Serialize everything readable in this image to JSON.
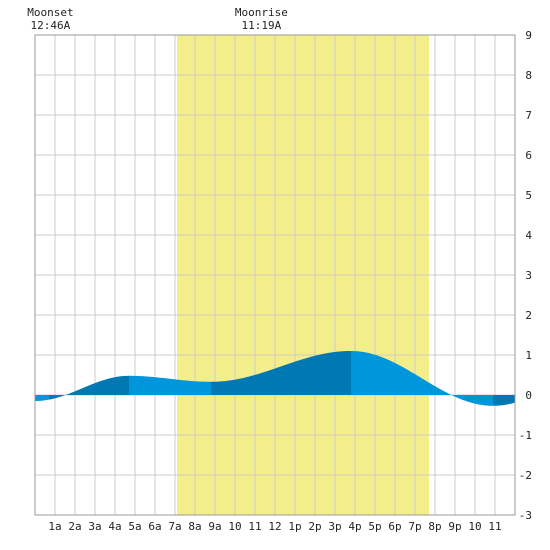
{
  "chart_data": {
    "type": "area",
    "x_unit": "hours since midnight",
    "xlim": [
      0,
      24
    ],
    "ylim": [
      -3,
      9
    ],
    "yticks": [
      -3,
      -2,
      -1,
      0,
      1,
      2,
      3,
      4,
      5,
      6,
      7,
      8,
      9
    ],
    "xtick_labels": [
      "1a",
      "2a",
      "3a",
      "4a",
      "5a",
      "6a",
      "7a",
      "8a",
      "9a",
      "10",
      "11",
      "12",
      "1p",
      "2p",
      "3p",
      "4p",
      "5p",
      "6p",
      "7p",
      "8p",
      "9p",
      "10",
      "11"
    ],
    "daylight": {
      "start_hour": 7.1,
      "end_hour": 19.7
    },
    "moon_events": [
      {
        "label": "Moonset",
        "time": "12:46A",
        "hour": 0.77
      },
      {
        "label": "Moonrise",
        "time": "11:19A",
        "hour": 11.32
      }
    ],
    "tide_extremes": [
      {
        "hour": 0.0,
        "height": -0.15,
        "kind": "low"
      },
      {
        "hour": 4.7,
        "height": 0.48,
        "kind": "high"
      },
      {
        "hour": 8.8,
        "height": 0.33,
        "kind": "low"
      },
      {
        "hour": 15.8,
        "height": 1.1,
        "kind": "high"
      },
      {
        "hour": 22.9,
        "height": -0.27,
        "kind": "low"
      }
    ],
    "band_boundaries_hours": [
      0,
      0.7,
      4.7,
      8.8,
      15.8,
      22.9,
      24
    ],
    "colors": {
      "daylight": "#f3ee8a",
      "tide_light": "#0096dc",
      "tide_dark": "#0078b4",
      "grid": "#cccccc",
      "frame": "#999999"
    }
  }
}
